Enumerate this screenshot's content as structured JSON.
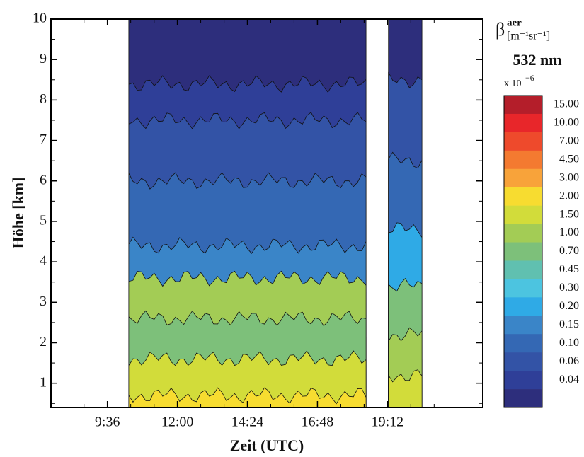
{
  "chart_data": {
    "type": "contour",
    "xlabel": "Zeit (UTC)",
    "ylabel": "Höhe [km]",
    "xlim": [
      460,
      1348
    ],
    "xticks": [
      {
        "value": 576,
        "label": "9:36"
      },
      {
        "value": 720,
        "label": "12:00"
      },
      {
        "value": 864,
        "label": "14:24"
      },
      {
        "value": 1008,
        "label": "16:48"
      },
      {
        "value": 1152,
        "label": "19:12"
      }
    ],
    "ylim": [
      0.4,
      10
    ],
    "yticks": [
      1,
      2,
      3,
      4,
      5,
      6,
      7,
      8,
      9,
      10
    ],
    "colorbar": {
      "symbol": "β",
      "symbol_super": "aer",
      "unit": "[m⁻¹sr⁻¹]",
      "wavelength": "532 nm",
      "scale": "x 10",
      "scale_exponent": "−6",
      "labels": [
        "15.00",
        "10.00",
        "7.00",
        "4.50",
        "3.00",
        "2.00",
        "1.50",
        "1.00",
        "0.70",
        "0.45",
        "0.30",
        "0.20",
        "0.15",
        "0.10",
        "0.06",
        "0.04"
      ],
      "colors": [
        "#b41e2a",
        "#e8262a",
        "#ee4a2c",
        "#f47a30",
        "#f8a33a",
        "#f7dc30",
        "#d2dc3a",
        "#a3cc55",
        "#7dc07a",
        "#60c0b0",
        "#4cc4e0",
        "#2faae6",
        "#3a85c8",
        "#3468b4",
        "#3353a6",
        "#2f3f98",
        "#2d2e7c"
      ]
    },
    "field": [
      {
        "x": [
          620,
          1108
        ],
        "layers": [
          {
            "top": 0.7,
            "level": 5
          },
          {
            "top": 1.6,
            "level": 6
          },
          {
            "top": 2.6,
            "level": 8
          },
          {
            "top": 3.6,
            "level": 7
          },
          {
            "top": 4.4,
            "level": 12
          },
          {
            "top": 6.0,
            "level": 13
          },
          {
            "top": 7.5,
            "level": 14
          },
          {
            "top": 8.4,
            "level": 15
          },
          {
            "top": 10,
            "level": 16
          }
        ]
      },
      {
        "x": [
          1154,
          1223
        ],
        "layers": [
          {
            "top": 1.2,
            "level": 6
          },
          {
            "top": 2.2,
            "level": 7
          },
          {
            "top": 3.4,
            "level": 8
          },
          {
            "top": 4.8,
            "level": 11
          },
          {
            "top": 6.5,
            "level": 13
          },
          {
            "top": 8.5,
            "level": 14
          },
          {
            "top": 10,
            "level": 16
          }
        ]
      }
    ]
  }
}
